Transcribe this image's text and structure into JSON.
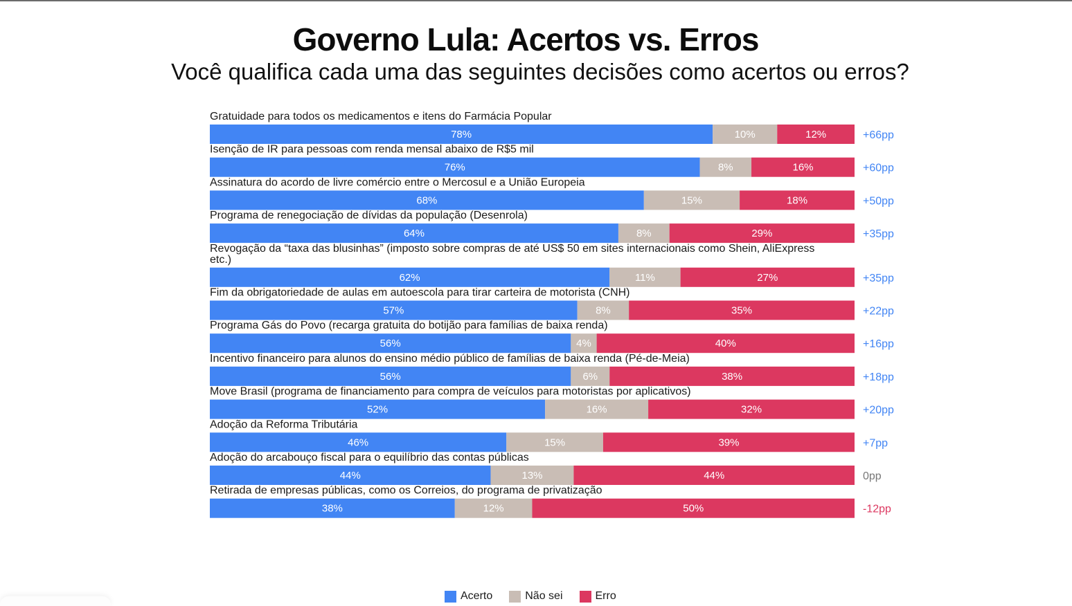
{
  "chart_data": {
    "type": "bar",
    "orientation": "horizontal",
    "stacked": true,
    "title": "Governo Lula: Acertos vs. Erros",
    "subtitle": "Você qualifica cada uma das seguintes decisões como acertos ou erros?",
    "categories": [
      "Gratuidade para todos os medicamentos e itens do Farmácia Popular",
      "Isenção de IR para pessoas com renda mensal abaixo de R$5 mil",
      "Assinatura do acordo de livre comércio entre o Mercosul e a União Europeia",
      "Programa de renegociação de dívidas da população (Desenrola)",
      "Revogação da “taxa das blusinhas” (imposto sobre compras de até US$ 50 em sites internacionais como Shein, AliExpress etc.)",
      "Fim da obrigatoriedade de aulas em autoescola para tirar carteira de motorista (CNH)",
      "Programa Gás do Povo (recarga gratuita do botijão para famílias de baixa renda)",
      "Incentivo financeiro para alunos do ensino médio público de famílias de baixa renda (Pé-de-Meia)",
      "Move Brasil (programa de financiamento para compra de veículos para motoristas por aplicativos)",
      "Adoção da Reforma Tributária",
      "Adoção do arcabouço fiscal para o equilíbrio das contas públicas",
      "Retirada de empresas públicas, como os Correios, do programa de privatização"
    ],
    "category_lines": [
      [
        "Gratuidade para todos os medicamentos e itens do Farmácia Popular"
      ],
      [
        "Isenção de IR para pessoas com renda mensal abaixo de R$5 mil"
      ],
      [
        "Assinatura do acordo de livre comércio entre o Mercosul e a União Europeia"
      ],
      [
        "Programa de renegociação de dívidas da população (Desenrola)"
      ],
      [
        "Revogação da “taxa das blusinhas” (imposto sobre compras de até US$ 50 em sites internacionais como Shein, AliExpress",
        "etc.)"
      ],
      [
        "Fim da obrigatoriedade de aulas em autoescola para tirar carteira de motorista (CNH)"
      ],
      [
        "Programa Gás do Povo (recarga gratuita do botijão para famílias de baixa renda)"
      ],
      [
        "Incentivo financeiro para alunos do ensino médio público de famílias de baixa renda (Pé-de-Meia)"
      ],
      [
        "Move Brasil (programa de financiamento para compra de veículos para motoristas por aplicativos)"
      ],
      [
        "Adoção da Reforma Tributária"
      ],
      [
        "Adoção do arcabouço fiscal para o equilíbrio das contas públicas"
      ],
      [
        "Retirada de empresas públicas, como os Correios, do programa de privatização"
      ]
    ],
    "series": [
      {
        "name": "Acerto",
        "color": "#4285f4",
        "values": [
          78,
          76,
          68,
          64,
          62,
          57,
          56,
          56,
          52,
          46,
          44,
          38
        ]
      },
      {
        "name": "Não sei",
        "color": "#c9bdb5",
        "values": [
          10,
          8,
          15,
          8,
          11,
          8,
          4,
          6,
          16,
          15,
          13,
          12
        ]
      },
      {
        "name": "Erro",
        "color": "#dc3860",
        "values": [
          12,
          16,
          18,
          29,
          27,
          35,
          40,
          38,
          32,
          39,
          44,
          50
        ]
      }
    ],
    "differences": [
      "+66pp",
      "+60pp",
      "+50pp",
      "+35pp",
      "+35pp",
      "+22pp",
      "+16pp",
      "+18pp",
      "+20pp",
      "+7pp",
      "0pp",
      "-12pp"
    ],
    "difference_colors": {
      "positive": "#4285f4",
      "zero": "#777777",
      "negative": "#dc3860"
    },
    "value_format": "{v}%",
    "legend_position": "bottom-center"
  }
}
